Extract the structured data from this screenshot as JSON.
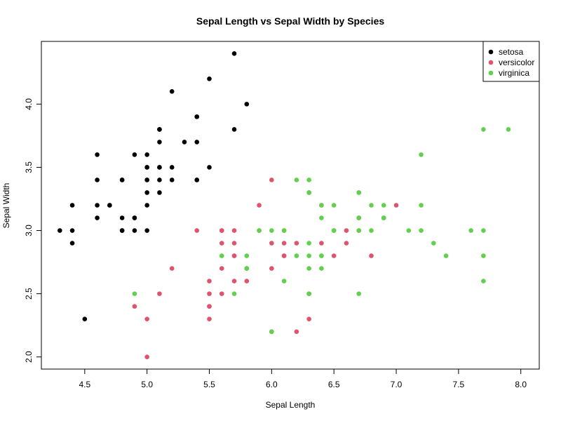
{
  "chart_data": {
    "type": "scatter",
    "title": "Sepal Length vs Sepal Width by Species",
    "xlabel": "Sepal Length",
    "ylabel": "Sepal Width",
    "xlim": [
      4.3,
      8.0
    ],
    "ylim": [
      2.0,
      4.4
    ],
    "xticks": [
      4.5,
      5.0,
      5.5,
      6.0,
      6.5,
      7.0,
      7.5,
      8.0
    ],
    "xtick_labels": [
      "4.5",
      "5.0",
      "5.5",
      "6.0",
      "6.5",
      "7.0",
      "7.5",
      "8.0"
    ],
    "yticks": [
      2.0,
      2.5,
      3.0,
      3.5,
      4.0
    ],
    "ytick_labels": [
      "2.0",
      "2.5",
      "3.0",
      "3.5",
      "4.0"
    ],
    "grid": false,
    "legend_position": "top-right",
    "series": [
      {
        "name": "setosa",
        "color": "#000000",
        "points": [
          [
            5.1,
            3.5
          ],
          [
            4.9,
            3.0
          ],
          [
            4.7,
            3.2
          ],
          [
            4.6,
            3.1
          ],
          [
            5.0,
            3.6
          ],
          [
            5.4,
            3.9
          ],
          [
            4.6,
            3.4
          ],
          [
            5.0,
            3.4
          ],
          [
            4.4,
            2.9
          ],
          [
            4.9,
            3.1
          ],
          [
            5.4,
            3.7
          ],
          [
            4.8,
            3.4
          ],
          [
            4.8,
            3.0
          ],
          [
            4.3,
            3.0
          ],
          [
            5.8,
            4.0
          ],
          [
            5.7,
            4.4
          ],
          [
            5.4,
            3.9
          ],
          [
            5.1,
            3.5
          ],
          [
            5.7,
            3.8
          ],
          [
            5.1,
            3.8
          ],
          [
            5.4,
            3.4
          ],
          [
            5.1,
            3.7
          ],
          [
            4.6,
            3.6
          ],
          [
            5.1,
            3.3
          ],
          [
            4.8,
            3.4
          ],
          [
            5.0,
            3.0
          ],
          [
            5.0,
            3.4
          ],
          [
            5.2,
            3.5
          ],
          [
            5.2,
            3.4
          ],
          [
            4.7,
            3.2
          ],
          [
            4.8,
            3.1
          ],
          [
            5.4,
            3.4
          ],
          [
            5.2,
            4.1
          ],
          [
            5.5,
            4.2
          ],
          [
            4.9,
            3.1
          ],
          [
            5.0,
            3.2
          ],
          [
            5.5,
            3.5
          ],
          [
            4.9,
            3.6
          ],
          [
            4.4,
            3.0
          ],
          [
            5.1,
            3.4
          ],
          [
            5.0,
            3.5
          ],
          [
            4.5,
            2.3
          ],
          [
            4.4,
            3.2
          ],
          [
            5.0,
            3.5
          ],
          [
            5.1,
            3.8
          ],
          [
            4.8,
            3.0
          ],
          [
            5.1,
            3.8
          ],
          [
            4.6,
            3.2
          ],
          [
            5.3,
            3.7
          ],
          [
            5.0,
            3.3
          ]
        ]
      },
      {
        "name": "versicolor",
        "color": "#DF536B",
        "points": [
          [
            7.0,
            3.2
          ],
          [
            6.4,
            3.2
          ],
          [
            6.9,
            3.1
          ],
          [
            5.5,
            2.3
          ],
          [
            6.5,
            2.8
          ],
          [
            5.7,
            2.8
          ],
          [
            6.3,
            3.3
          ],
          [
            4.9,
            2.4
          ],
          [
            6.6,
            2.9
          ],
          [
            5.2,
            2.7
          ],
          [
            5.0,
            2.0
          ],
          [
            5.9,
            3.0
          ],
          [
            6.0,
            2.2
          ],
          [
            6.1,
            2.9
          ],
          [
            5.6,
            2.9
          ],
          [
            6.7,
            3.1
          ],
          [
            5.6,
            3.0
          ],
          [
            5.8,
            2.7
          ],
          [
            6.2,
            2.2
          ],
          [
            5.6,
            2.5
          ],
          [
            5.9,
            3.2
          ],
          [
            6.1,
            2.8
          ],
          [
            6.3,
            2.5
          ],
          [
            6.1,
            2.8
          ],
          [
            6.4,
            2.9
          ],
          [
            6.6,
            3.0
          ],
          [
            6.8,
            2.8
          ],
          [
            6.7,
            3.0
          ],
          [
            6.0,
            2.9
          ],
          [
            5.7,
            2.6
          ],
          [
            5.5,
            2.4
          ],
          [
            5.5,
            2.4
          ],
          [
            5.8,
            2.7
          ],
          [
            6.0,
            2.7
          ],
          [
            5.4,
            3.0
          ],
          [
            6.0,
            3.4
          ],
          [
            6.7,
            3.1
          ],
          [
            6.3,
            2.3
          ],
          [
            5.6,
            3.0
          ],
          [
            5.5,
            2.5
          ],
          [
            5.5,
            2.6
          ],
          [
            6.1,
            3.0
          ],
          [
            5.8,
            2.6
          ],
          [
            5.0,
            2.3
          ],
          [
            5.6,
            2.7
          ],
          [
            5.7,
            3.0
          ],
          [
            5.7,
            2.9
          ],
          [
            6.2,
            2.9
          ],
          [
            5.1,
            2.5
          ],
          [
            5.7,
            2.8
          ]
        ]
      },
      {
        "name": "virginica",
        "color": "#61D04F",
        "points": [
          [
            6.3,
            3.3
          ],
          [
            5.8,
            2.7
          ],
          [
            7.1,
            3.0
          ],
          [
            6.3,
            2.9
          ],
          [
            6.5,
            3.0
          ],
          [
            7.6,
            3.0
          ],
          [
            4.9,
            2.5
          ],
          [
            7.3,
            2.9
          ],
          [
            6.7,
            2.5
          ],
          [
            7.2,
            3.6
          ],
          [
            6.5,
            3.2
          ],
          [
            6.4,
            2.7
          ],
          [
            6.8,
            3.0
          ],
          [
            5.7,
            2.5
          ],
          [
            5.8,
            2.8
          ],
          [
            6.4,
            3.2
          ],
          [
            6.5,
            3.0
          ],
          [
            7.7,
            3.8
          ],
          [
            7.7,
            2.6
          ],
          [
            6.0,
            2.2
          ],
          [
            6.9,
            3.2
          ],
          [
            5.6,
            2.8
          ],
          [
            7.7,
            2.8
          ],
          [
            6.3,
            2.7
          ],
          [
            6.7,
            3.3
          ],
          [
            7.2,
            3.2
          ],
          [
            6.2,
            2.8
          ],
          [
            6.1,
            3.0
          ],
          [
            6.4,
            2.8
          ],
          [
            7.2,
            3.0
          ],
          [
            7.4,
            2.8
          ],
          [
            7.9,
            3.8
          ],
          [
            6.4,
            2.8
          ],
          [
            6.3,
            2.8
          ],
          [
            6.1,
            2.6
          ],
          [
            7.7,
            3.0
          ],
          [
            6.3,
            3.4
          ],
          [
            6.4,
            3.1
          ],
          [
            6.0,
            3.0
          ],
          [
            6.9,
            3.1
          ],
          [
            6.7,
            3.1
          ],
          [
            6.9,
            3.1
          ],
          [
            5.8,
            2.7
          ],
          [
            6.8,
            3.2
          ],
          [
            6.7,
            3.3
          ],
          [
            6.7,
            3.0
          ],
          [
            6.3,
            2.5
          ],
          [
            6.5,
            3.0
          ],
          [
            6.2,
            3.4
          ],
          [
            5.9,
            3.0
          ]
        ]
      }
    ]
  }
}
